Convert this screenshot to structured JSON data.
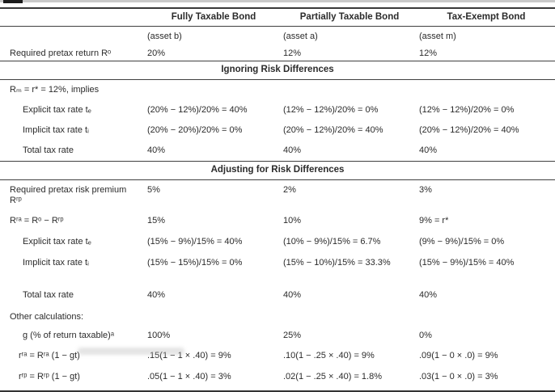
{
  "colors": {
    "ink": "#2b2b2b",
    "rule": "#3a3a3a",
    "scan_strip": "#c9c9c9"
  },
  "table": {
    "column_headers": [
      "Fully Taxable Bond",
      "Partially Taxable Bond",
      "Tax-Exempt Bond"
    ],
    "asset_labels": [
      "(asset b)",
      "(asset a)",
      "(asset m)"
    ],
    "section_headers": {
      "ignoring": "Ignoring Risk Differences",
      "adjusting": "Adjusting for Risk Differences"
    },
    "rows": [
      {
        "label": "Required pretax return Rᵒ",
        "cells": [
          "20%",
          "12%",
          "12%"
        ]
      },
      {
        "label": "Rₘ = r* = 12%, implies",
        "cells": [
          "",
          "",
          ""
        ]
      },
      {
        "label": "Explicit tax rate tₑ",
        "cells": [
          "(20% − 12%)/20% = 40%",
          "(12% − 12%)/20% = 0%",
          "(12% − 12%)/20% = 0%"
        ]
      },
      {
        "label": "Implicit tax rate tᵢ",
        "cells": [
          "(20% − 20%)/20% = 0%",
          "(20% − 12%)/20% = 40%",
          "(20% − 12%)/20% = 40%"
        ]
      },
      {
        "label": "Total tax rate",
        "cells": [
          "40%",
          "40%",
          "40%"
        ]
      },
      {
        "label": "Required pretax risk premium Rʳᵖ",
        "cells": [
          "5%",
          "2%",
          "3%"
        ]
      },
      {
        "label": "Rʳᵃ = Rᵒ − Rʳᵖ",
        "cells": [
          "15%",
          "10%",
          "9% = r*"
        ]
      },
      {
        "label": "Explicit tax rate tₑ",
        "cells": [
          "(15% − 9%)/15% = 40%",
          "(10% − 9%)/15% = 6.7%",
          "(9% − 9%)/15% = 0%"
        ]
      },
      {
        "label": "Implicit tax rate tᵢ",
        "cells": [
          "(15% − 15%)/15% = 0%",
          "(15% − 10%)/15% = 33.3%",
          "(15% − 9%)/15% = 40%"
        ]
      },
      {
        "label": "Total tax rate",
        "cells": [
          "40%",
          "40%",
          "40%"
        ]
      },
      {
        "label": "Other calculations:",
        "cells": [
          "",
          "",
          ""
        ]
      },
      {
        "label": "g (% of return taxable)ᵃ",
        "cells": [
          "100%",
          "25%",
          "0%"
        ]
      },
      {
        "label": "rʳᵃ = Rʳᵃ (1 − gt)",
        "cells": [
          ".15(1 − 1 × .40) = 9%",
          ".10(1 − .25 × .40) = 9%",
          ".09(1 − 0 × .0) = 9%"
        ]
      },
      {
        "label": "rʳᵖ = Rʳᵖ (1 − gt)",
        "cells": [
          ".05(1 − 1 × .40) = 3%",
          ".02(1 − .25 × .40) = 1.8%",
          ".03(1 − 0 × .0) = 3%"
        ]
      }
    ]
  }
}
